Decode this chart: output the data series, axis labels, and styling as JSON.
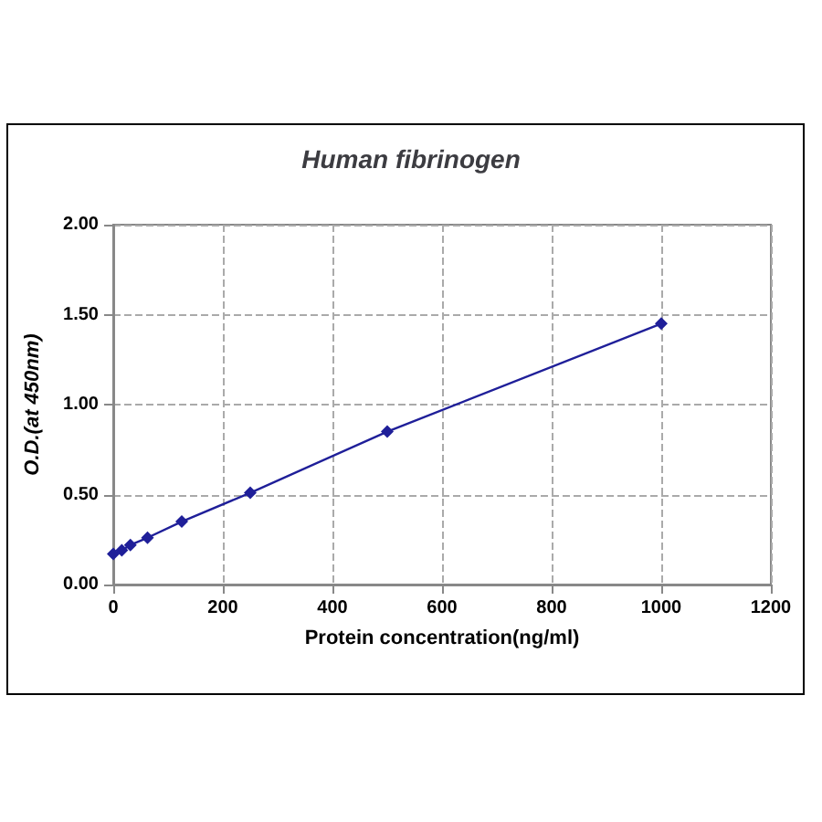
{
  "chart_data": {
    "type": "line",
    "title": "Human fibrinogen",
    "xlabel": "Protein concentration(ng/ml)",
    "ylabel": "O.D.(at 450nm)",
    "x": [
      0,
      15.6,
      31.25,
      62.5,
      125,
      250,
      500,
      1000
    ],
    "series": [
      {
        "color": "#1f1f99",
        "values": [
          0.17,
          0.19,
          0.22,
          0.26,
          0.35,
          0.51,
          0.85,
          1.45
        ]
      }
    ],
    "xlim": [
      0,
      1200
    ],
    "xticks": [
      0,
      200,
      400,
      600,
      800,
      1000,
      1200
    ],
    "ylim": [
      0,
      2
    ],
    "yticks": [
      {
        "value": 0,
        "label": "0.00"
      },
      {
        "value": 0.5,
        "label": "0.50"
      },
      {
        "value": 1,
        "label": "1.00"
      },
      {
        "value": 1.5,
        "label": "1.50"
      },
      {
        "value": 2,
        "label": "2.00"
      }
    ],
    "grid": true,
    "marker": "diamond",
    "line_style": "solid"
  }
}
